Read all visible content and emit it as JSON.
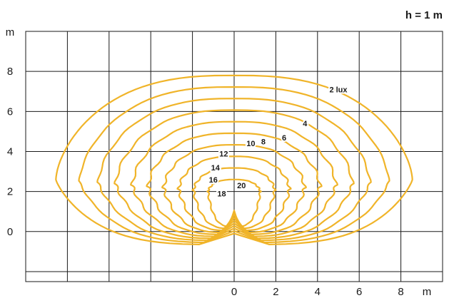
{
  "chart_data": {
    "type": "contour",
    "title": "h = 1 m",
    "xlabel": "m",
    "ylabel": "m",
    "xlim": [
      -10,
      10
    ],
    "ylim": [
      -2.5,
      10
    ],
    "x_ticks": [
      "0",
      "2",
      "4",
      "6",
      "8"
    ],
    "x_tick_values": [
      0,
      2,
      4,
      6,
      8
    ],
    "y_ticks": [
      "0",
      "2",
      "4",
      "6",
      "8"
    ],
    "y_tick_values": [
      0,
      2,
      4,
      6,
      8
    ],
    "grid": true,
    "line_color": "#f0b429",
    "contours": [
      {
        "label": "2 lux",
        "value": 2
      },
      {
        "label": "4",
        "value": 4
      },
      {
        "label": "6",
        "value": 6
      },
      {
        "label": "8",
        "value": 8
      },
      {
        "label": "10",
        "value": 10
      },
      {
        "label": "12",
        "value": 12
      },
      {
        "label": "14",
        "value": 14
      },
      {
        "label": "16",
        "value": 16
      },
      {
        "label": "18",
        "value": 18
      },
      {
        "label": "20",
        "value": 20
      }
    ]
  }
}
